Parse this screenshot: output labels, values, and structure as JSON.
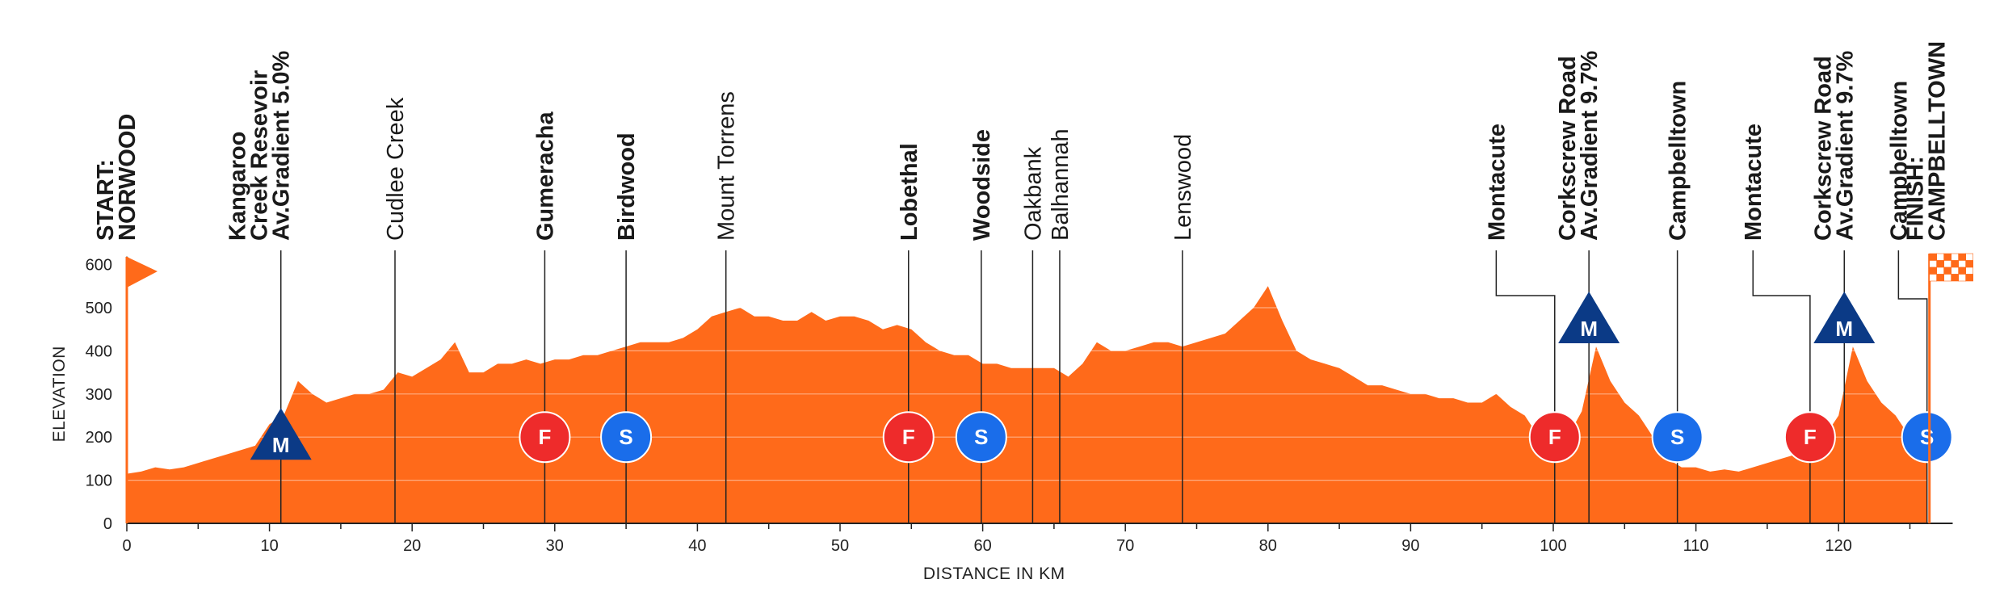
{
  "chart_data": {
    "type": "area",
    "title": "",
    "xlabel": "DISTANCE IN KM",
    "ylabel": "ELEVATION",
    "xlim": [
      0,
      128
    ],
    "ylim": [
      0,
      650
    ],
    "x_ticks": [
      0,
      10,
      20,
      30,
      40,
      50,
      60,
      70,
      80,
      90,
      100,
      110,
      120
    ],
    "y_ticks": [
      0,
      100,
      200,
      300,
      400,
      500,
      600
    ],
    "grid": true,
    "colors": {
      "fill": "#ff6a1a",
      "climb": "#0b3a86",
      "sprint": "#1a6dea",
      "feed": "#ee2b2b",
      "axis": "#222222"
    },
    "profile": {
      "x": [
        0,
        1,
        2,
        3,
        4,
        5,
        6,
        7,
        8,
        9,
        10,
        11,
        12,
        13,
        14,
        15,
        16,
        17,
        18,
        19,
        20,
        21,
        22,
        23,
        24,
        25,
        26,
        27,
        28,
        29,
        30,
        31,
        32,
        33,
        34,
        35,
        36,
        37,
        38,
        39,
        40,
        41,
        42,
        43,
        44,
        45,
        46,
        47,
        48,
        49,
        50,
        51,
        52,
        53,
        54,
        55,
        56,
        57,
        58,
        59,
        60,
        61,
        62,
        63,
        64,
        65,
        66,
        67,
        68,
        69,
        70,
        71,
        72,
        73,
        74,
        75,
        76,
        77,
        78,
        79,
        80,
        81,
        82,
        83,
        84,
        85,
        86,
        87,
        88,
        89,
        90,
        91,
        92,
        93,
        94,
        95,
        96,
        97,
        98,
        99,
        100,
        101,
        102,
        103,
        104,
        105,
        106,
        107,
        108,
        109,
        110,
        111,
        112,
        113,
        114,
        115,
        116,
        117,
        118,
        119,
        120,
        121,
        122,
        123,
        124,
        125,
        126.2
      ],
      "y": [
        115,
        120,
        130,
        125,
        130,
        140,
        150,
        160,
        170,
        180,
        230,
        250,
        330,
        300,
        280,
        290,
        300,
        300,
        310,
        350,
        340,
        360,
        380,
        420,
        350,
        350,
        370,
        370,
        380,
        370,
        380,
        380,
        390,
        390,
        400,
        410,
        420,
        420,
        420,
        430,
        450,
        480,
        490,
        500,
        480,
        480,
        470,
        470,
        490,
        470,
        480,
        480,
        470,
        450,
        460,
        450,
        420,
        400,
        390,
        390,
        370,
        370,
        360,
        360,
        360,
        360,
        340,
        370,
        420,
        400,
        400,
        410,
        420,
        420,
        410,
        420,
        430,
        440,
        470,
        500,
        550,
        470,
        400,
        380,
        370,
        360,
        340,
        320,
        320,
        310,
        300,
        300,
        290,
        290,
        280,
        280,
        300,
        270,
        250,
        200,
        180,
        200,
        260,
        410,
        330,
        280,
        250,
        200,
        150,
        130,
        130,
        120,
        125,
        120,
        130,
        140,
        150,
        160,
        170,
        200,
        250,
        410,
        330,
        280,
        250,
        200,
        180
      ],
      "label_note": "elevation in m by distance in km"
    },
    "locations": [
      {
        "km": 0,
        "lines": [
          "START:",
          "NORWOOD"
        ],
        "bold": true
      },
      {
        "km": 10.8,
        "lines": [
          "Kangaroo",
          "Creek Resevoir",
          "Av.Gradient 5.0%"
        ],
        "bold": true
      },
      {
        "km": 18.8,
        "lines": [
          "Cudlee Creek"
        ],
        "bold": false
      },
      {
        "km": 29.3,
        "lines": [
          "Gumeracha"
        ],
        "bold": true
      },
      {
        "km": 35,
        "lines": [
          "Birdwood"
        ],
        "bold": true
      },
      {
        "km": 42,
        "lines": [
          "Mount Torrens"
        ],
        "bold": false
      },
      {
        "km": 54.8,
        "lines": [
          "Lobethal"
        ],
        "bold": true
      },
      {
        "km": 59.9,
        "lines": [
          "Woodside"
        ],
        "bold": true
      },
      {
        "km": 63.5,
        "lines": [
          "Oakbank"
        ],
        "bold": false
      },
      {
        "km": 65.4,
        "lines": [
          "Balhannah"
        ],
        "bold": false
      },
      {
        "km": 74,
        "lines": [
          "Lenswood"
        ],
        "bold": false
      },
      {
        "km": 100.1,
        "lines": [
          "Montacute"
        ],
        "bold": true,
        "label_km": 96,
        "leader_y": 230
      },
      {
        "km": 102.5,
        "lines": [
          "Corkscrew Road",
          "Av.Gradient 9.7%"
        ],
        "bold": true
      },
      {
        "km": 108.7,
        "lines": [
          "Campbelltown"
        ],
        "bold": true
      },
      {
        "km": 118,
        "lines": [
          "Montacute"
        ],
        "bold": true,
        "label_km": 114,
        "leader_y": 230
      },
      {
        "km": 120.4,
        "lines": [
          "Corkscrew Road",
          "Av.Gradient 9.7%"
        ],
        "bold": true
      },
      {
        "km": 126.2,
        "lines": [
          "Campbelltown",
          "FINISH:",
          "CAMPBELLTOWN"
        ],
        "bold": true,
        "split": true,
        "leader_y": 230
      }
    ],
    "markers": [
      {
        "type": "climb",
        "km": 10.8,
        "label": "M",
        "elev": 200
      },
      {
        "type": "feed",
        "km": 29.3,
        "label": "F",
        "elev": 200
      },
      {
        "type": "sprint",
        "km": 35,
        "label": "S",
        "elev": 200
      },
      {
        "type": "feed",
        "km": 54.8,
        "label": "F",
        "elev": 200
      },
      {
        "type": "sprint",
        "km": 59.9,
        "label": "S",
        "elev": 200
      },
      {
        "type": "feed",
        "km": 100.1,
        "label": "F",
        "elev": 200
      },
      {
        "type": "climb",
        "km": 102.5,
        "label": "M",
        "elev": 470
      },
      {
        "type": "sprint",
        "km": 108.7,
        "label": "S",
        "elev": 200
      },
      {
        "type": "feed",
        "km": 118,
        "label": "F",
        "elev": 200
      },
      {
        "type": "climb",
        "km": 120.4,
        "label": "M",
        "elev": 470
      },
      {
        "type": "sprint",
        "km": 126.2,
        "label": "S",
        "elev": 200
      }
    ]
  }
}
